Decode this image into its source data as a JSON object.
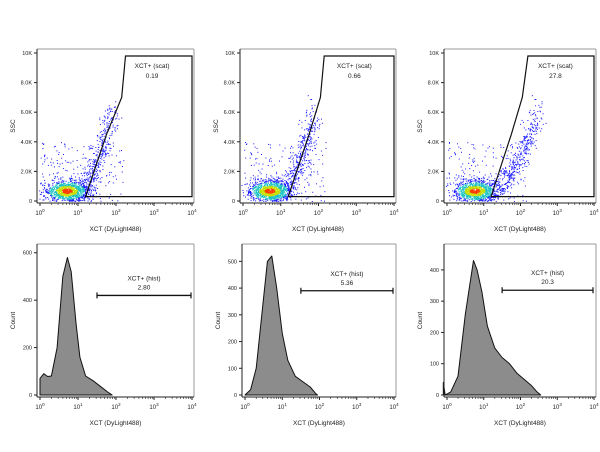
{
  "figure": {
    "description": "Flow cytometry: XCT (DyLight488) staining, 3 samples; top row SSC vs XCT dot plots with polygon gate, bottom row XCT histograms with range gate"
  },
  "chart_data": [
    {
      "type": "scatter",
      "panel": "top-1",
      "xlabel": "XCT (DyLight488)",
      "ylabel": "SSC",
      "x_scale": "log",
      "xlim": [
        1,
        10000
      ],
      "x_ticks": [
        "10^0",
        "10^1",
        "10^2",
        "10^3",
        "10^4"
      ],
      "ylim": [
        0,
        10000
      ],
      "y_ticks": [
        "0",
        "2.0K",
        "4.0K",
        "6.0K",
        "8.0K",
        "10K"
      ],
      "gate": {
        "name": "XCT+ (scat)",
        "value": "0.19"
      },
      "gate_polygon_logx_y": [
        [
          1.2,
          300
        ],
        [
          1.5,
          2600
        ],
        [
          1.75,
          4500
        ],
        [
          2.15,
          7000
        ],
        [
          2.25,
          9800
        ],
        [
          4.0,
          9800
        ],
        [
          4.0,
          300
        ]
      ],
      "population": {
        "center_logx": 0.7,
        "center_y": 700,
        "tail_max_logx": 1.9,
        "tail_max_y": 6000
      }
    },
    {
      "type": "scatter",
      "panel": "top-2",
      "xlabel": "XCT (DyLight488)",
      "ylabel": "SSC",
      "x_scale": "log",
      "xlim": [
        1,
        10000
      ],
      "x_ticks": [
        "10^0",
        "10^1",
        "10^2",
        "10^3",
        "10^4"
      ],
      "ylim": [
        0,
        10000
      ],
      "y_ticks": [
        "0",
        "2.0K",
        "4.0K",
        "6.0K",
        "8.0K",
        "10K"
      ],
      "gate": {
        "name": "XCT+ (scat)",
        "value": "0.66"
      },
      "gate_polygon_logx_y": [
        [
          1.2,
          300
        ],
        [
          1.5,
          2600
        ],
        [
          1.75,
          4500
        ],
        [
          2.05,
          7000
        ],
        [
          2.15,
          9800
        ],
        [
          4.0,
          9800
        ],
        [
          4.0,
          300
        ]
      ],
      "population": {
        "center_logx": 0.7,
        "center_y": 700,
        "tail_max_logx": 1.9,
        "tail_max_y": 6000
      }
    },
    {
      "type": "scatter",
      "panel": "top-3",
      "xlabel": "XCT (DyLight488)",
      "ylabel": "SSC",
      "x_scale": "log",
      "xlim": [
        1,
        10000
      ],
      "x_ticks": [
        "10^0",
        "10^1",
        "10^2",
        "10^3",
        "10^4"
      ],
      "ylim": [
        0,
        10000
      ],
      "y_ticks": [
        "0",
        "2.0K",
        "4.0K",
        "6.0K",
        "8.0K",
        "10K"
      ],
      "gate": {
        "name": "XCT+ (scat)",
        "value": "27.8"
      },
      "gate_polygon_logx_y": [
        [
          1.2,
          300
        ],
        [
          1.5,
          2600
        ],
        [
          1.75,
          4500
        ],
        [
          2.05,
          7000
        ],
        [
          2.2,
          9800
        ],
        [
          4.0,
          9800
        ],
        [
          4.0,
          300
        ]
      ],
      "population": {
        "center_logx": 0.75,
        "center_y": 700,
        "tail_max_logx": 2.5,
        "tail_max_y": 6000
      }
    },
    {
      "type": "area",
      "panel": "bottom-1",
      "xlabel": "XCT (DyLight488)",
      "ylabel": "Count",
      "x_scale": "log",
      "xlim": [
        1,
        10000
      ],
      "x_ticks": [
        "10^0",
        "10^1",
        "10^2",
        "10^3",
        "10^4"
      ],
      "ylim": [
        0,
        620
      ],
      "y_ticks": [
        0,
        200,
        400,
        600
      ],
      "gate": {
        "name": "XCT+ (hist)",
        "value": "2.80",
        "range_logx": [
          1.5,
          4.0
        ],
        "y": 420
      },
      "curve_logx_count": [
        [
          0,
          70
        ],
        [
          0.1,
          90
        ],
        [
          0.2,
          78
        ],
        [
          0.3,
          80
        ],
        [
          0.45,
          200
        ],
        [
          0.6,
          500
        ],
        [
          0.72,
          580
        ],
        [
          0.82,
          520
        ],
        [
          0.95,
          300
        ],
        [
          1.05,
          160
        ],
        [
          1.2,
          80
        ],
        [
          1.4,
          60
        ],
        [
          1.6,
          35
        ],
        [
          1.8,
          10
        ],
        [
          1.9,
          0
        ]
      ]
    },
    {
      "type": "area",
      "panel": "bottom-2",
      "xlabel": "XCT (DyLight488)",
      "ylabel": "Count",
      "x_scale": "log",
      "xlim": [
        1,
        10000
      ],
      "x_ticks": [
        "10^0",
        "10^1",
        "10^2",
        "10^3",
        "10^4"
      ],
      "ylim": [
        0,
        550
      ],
      "y_ticks": [
        0,
        100,
        200,
        300,
        400,
        500
      ],
      "gate": {
        "name": "XCT+ (hist)",
        "value": "5.36",
        "range_logx": [
          1.5,
          4.0
        ],
        "y": 390
      },
      "curve_logx_count": [
        [
          0,
          0
        ],
        [
          0.15,
          20
        ],
        [
          0.3,
          100
        ],
        [
          0.45,
          300
        ],
        [
          0.6,
          500
        ],
        [
          0.72,
          520
        ],
        [
          0.85,
          400
        ],
        [
          1.0,
          230
        ],
        [
          1.15,
          130
        ],
        [
          1.35,
          70
        ],
        [
          1.55,
          50
        ],
        [
          1.75,
          30
        ],
        [
          1.9,
          5
        ],
        [
          1.95,
          0
        ]
      ]
    },
    {
      "type": "area",
      "panel": "bottom-3",
      "xlabel": "XCT (DyLight488)",
      "ylabel": "Count",
      "x_scale": "log",
      "xlim": [
        1,
        10000
      ],
      "x_ticks": [
        "10^0",
        "10^1",
        "10^2",
        "10^3",
        "10^4"
      ],
      "ylim": [
        0,
        470
      ],
      "y_ticks": [
        0,
        100,
        200,
        300,
        400
      ],
      "gate": {
        "name": "XCT+ (hist)",
        "value": "20.3",
        "range_logx": [
          1.5,
          4.0
        ],
        "y": 335
      },
      "curve_logx_count": [
        [
          -0.1,
          40
        ],
        [
          -0.05,
          0
        ],
        [
          0.1,
          10
        ],
        [
          0.3,
          60
        ],
        [
          0.5,
          260
        ],
        [
          0.72,
          430
        ],
        [
          0.82,
          400
        ],
        [
          0.95,
          330
        ],
        [
          1.1,
          220
        ],
        [
          1.3,
          150
        ],
        [
          1.5,
          120
        ],
        [
          1.7,
          100
        ],
        [
          1.9,
          70
        ],
        [
          2.1,
          50
        ],
        [
          2.3,
          30
        ],
        [
          2.45,
          10
        ],
        [
          2.55,
          0
        ]
      ]
    }
  ],
  "colors": {
    "axis": "#222222",
    "gate_line": "#111111",
    "hist_fill": "#8c8c8c",
    "hist_line": "#111111",
    "density_low": "#1a1aff",
    "density_mid": "#19c2c2",
    "density_hi": "#c8e000",
    "density_peak": "#ff3c00"
  }
}
